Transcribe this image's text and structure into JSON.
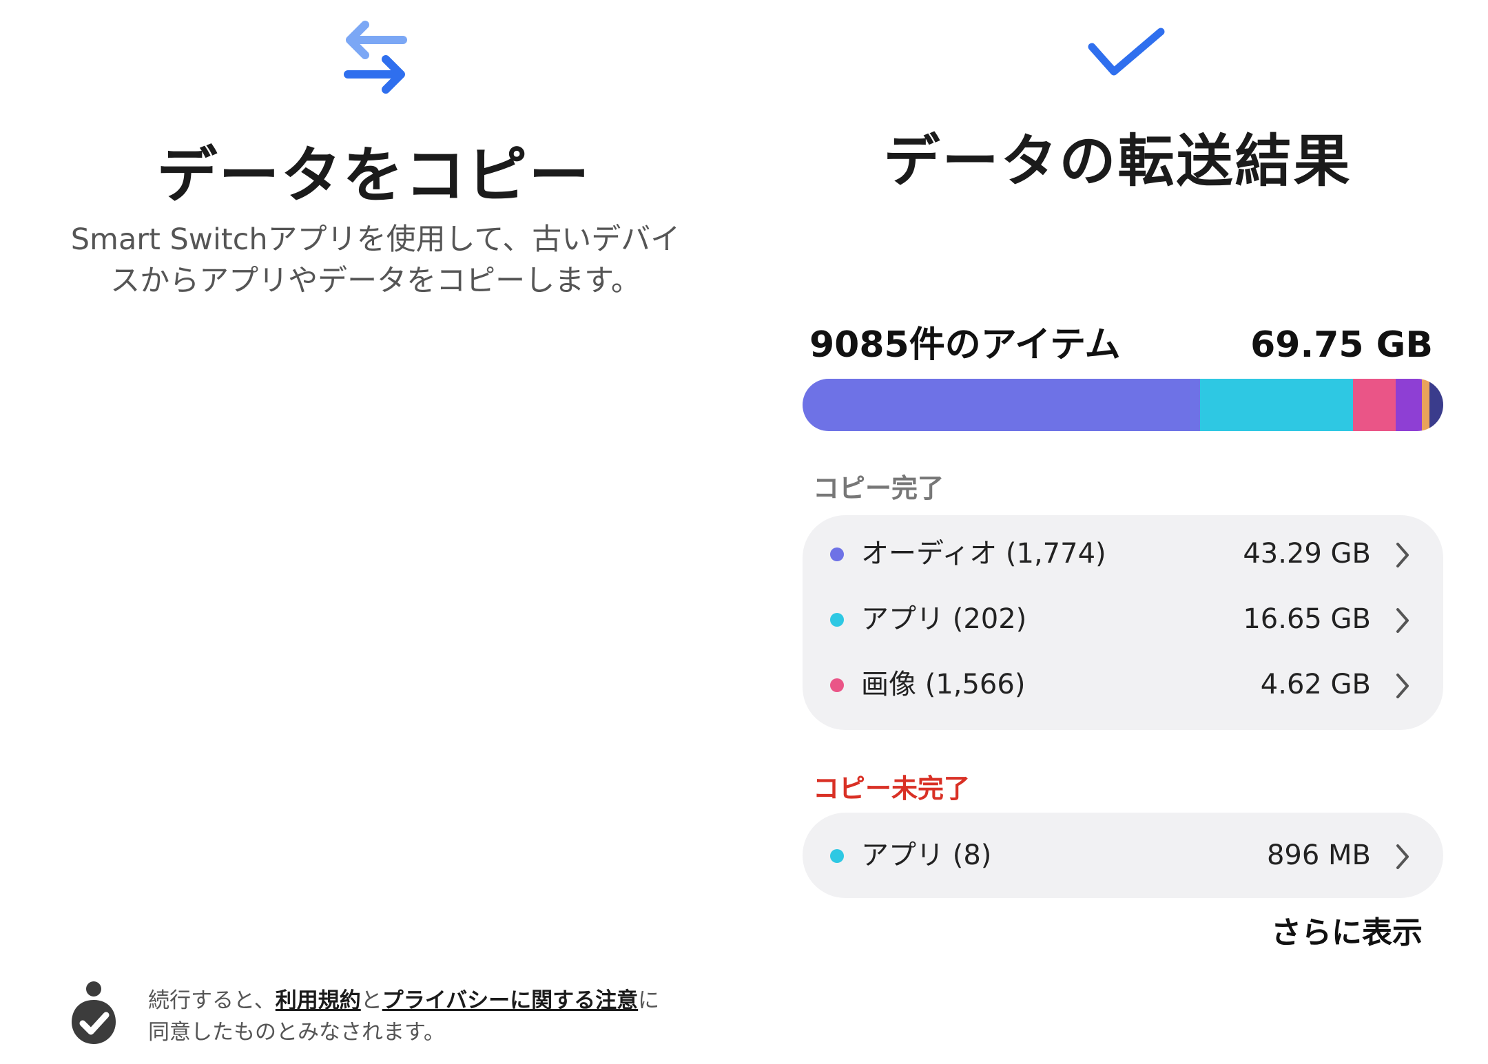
{
  "left": {
    "icon": "transfer-arrows-icon",
    "title": "データをコピー",
    "description_line1": "Smart Switchアプリを使用して、古いデバイ",
    "description_line2": "スからアプリやデータをコピーします。",
    "consent": {
      "icon": "privacy-person-check-icon",
      "prefix": "続行すると、",
      "terms_link": "利用規約",
      "middle": "と",
      "privacy_link": "プライバシーに関する注意",
      "suffix": "に",
      "line2": "同意したものとみなされます。"
    }
  },
  "right": {
    "icon": "checkmark-icon",
    "title": "データの転送結果",
    "summary": {
      "count": "9085件のアイテム",
      "total_size": "69.75 GB"
    },
    "usage_bar": [
      {
        "name": "オーディオ",
        "value_gb": 43.29,
        "color": "#6e72e6"
      },
      {
        "name": "アプリ",
        "value_gb": 16.65,
        "color": "#2ec8e3"
      },
      {
        "name": "画像",
        "value_gb": 4.62,
        "color": "#ea5587"
      },
      {
        "name": "other-1",
        "value_gb": 2.9,
        "color": "#8e3fd4"
      },
      {
        "name": "other-2",
        "value_gb": 0.8,
        "color": "#e9a35a"
      },
      {
        "name": "other-3",
        "value_gb": 1.5,
        "color": "#3a3c8c"
      }
    ],
    "copied_label": "コピー完了",
    "copied_items": [
      {
        "name": "オーディオ (1,774)",
        "size": "43.29 GB",
        "color": "#6e72e6"
      },
      {
        "name": "アプリ (202)",
        "size": "16.65 GB",
        "color": "#2ec8e3"
      },
      {
        "name": "画像 (1,566)",
        "size": "4.62 GB",
        "color": "#ea5587"
      }
    ],
    "incomplete_label": "コピー未完了",
    "incomplete_items": [
      {
        "name": "アプリ (8)",
        "size": "896 MB",
        "color": "#2ec8e3"
      }
    ],
    "show_more": "さらに表示"
  }
}
